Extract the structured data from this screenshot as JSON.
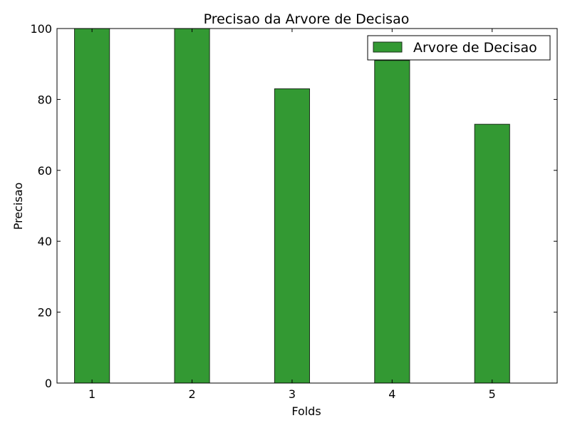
{
  "chart_data": {
    "type": "bar",
    "title": "Precisao da Arvore de Decisao",
    "xlabel": "Folds",
    "ylabel": "Precisao",
    "categories": [
      "1",
      "2",
      "3",
      "4",
      "5"
    ],
    "x": [
      1,
      2,
      3,
      4,
      5
    ],
    "series": [
      {
        "name": "Arvore de Decisao",
        "values": [
          100,
          100,
          83,
          91,
          73
        ]
      }
    ],
    "ylim": [
      0,
      100
    ],
    "xlim": [
      0.65,
      5.65
    ],
    "yticks": [
      0,
      20,
      40,
      60,
      80,
      100
    ],
    "xticks": [
      1,
      2,
      3,
      4,
      5
    ],
    "bar_color": "#339933",
    "bar_edge_color": "#1a2e1a",
    "legend_position": "top-right",
    "grid": false
  }
}
